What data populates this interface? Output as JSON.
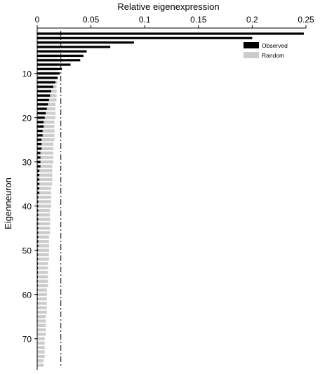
{
  "chart_data": {
    "type": "bar",
    "orientation": "horizontal",
    "xlabel": "Relative eigenexpression",
    "ylabel": "Eigenneuron",
    "x_axis_position": "top",
    "xlim": [
      0,
      0.25
    ],
    "xticks": [
      0,
      0.05,
      0.1,
      0.15,
      0.2,
      0.25
    ],
    "xtick_labels": [
      "0",
      "0.05",
      "0.1",
      "0.15",
      "0.2",
      "0.25"
    ],
    "y_direction": "top-to-bottom",
    "ylim": [
      1,
      76
    ],
    "yticks": [
      10,
      20,
      30,
      40,
      50,
      60,
      70
    ],
    "ytick_labels": [
      "10",
      "20",
      "30",
      "40",
      "50",
      "60",
      "70"
    ],
    "reference_line_x": 0.022,
    "legend": {
      "placement": "top-right"
    },
    "series": [
      {
        "name": "Observed",
        "color": "#000000",
        "values": [
          0.248,
          0.2,
          0.09,
          0.068,
          0.046,
          0.043,
          0.04,
          0.031,
          0.023,
          0.021,
          0.019,
          0.017,
          0.015,
          0.013,
          0.012,
          0.011,
          0.01,
          0.009,
          0.008,
          0.007,
          0.006,
          0.006,
          0.005,
          0.005,
          0.004,
          0.004,
          0.004,
          0.003,
          0.003,
          0.003,
          0.003,
          0.002,
          0.002,
          0.002,
          0.002,
          0.002,
          0.002,
          0.001,
          0.001,
          0.001,
          0.001,
          0.001,
          0.001,
          0.001,
          0.001,
          0.001,
          0.001,
          0.001,
          0.001,
          0.0008,
          0.0008,
          0.0008,
          0.0007,
          0.0007,
          0.0007,
          0.0006,
          0.0006,
          0.0006,
          0.0005,
          0.0005,
          0.0005,
          0.0005,
          0.0004,
          0.0004,
          0.0004,
          0.0004,
          0.0003,
          0.0003,
          0.0003,
          0.0003,
          0.0003,
          0.0002,
          0.0002,
          0.0002,
          0.0002,
          0.0002
        ]
      },
      {
        "name": "Random",
        "color": "#cccccc",
        "values": [
          0.022,
          0.022,
          0.021,
          0.021,
          0.021,
          0.02,
          0.02,
          0.02,
          0.02,
          0.019,
          0.019,
          0.019,
          0.018,
          0.018,
          0.018,
          0.018,
          0.017,
          0.017,
          0.017,
          0.017,
          0.016,
          0.016,
          0.016,
          0.016,
          0.016,
          0.015,
          0.015,
          0.015,
          0.015,
          0.015,
          0.014,
          0.014,
          0.014,
          0.014,
          0.014,
          0.013,
          0.013,
          0.013,
          0.013,
          0.013,
          0.012,
          0.012,
          0.012,
          0.012,
          0.012,
          0.012,
          0.011,
          0.011,
          0.011,
          0.011,
          0.011,
          0.011,
          0.01,
          0.01,
          0.01,
          0.01,
          0.01,
          0.01,
          0.009,
          0.009,
          0.009,
          0.009,
          0.009,
          0.009,
          0.008,
          0.008,
          0.008,
          0.008,
          0.008,
          0.007,
          0.007,
          0.007,
          0.007,
          0.007,
          0.006,
          0.006
        ]
      }
    ]
  }
}
